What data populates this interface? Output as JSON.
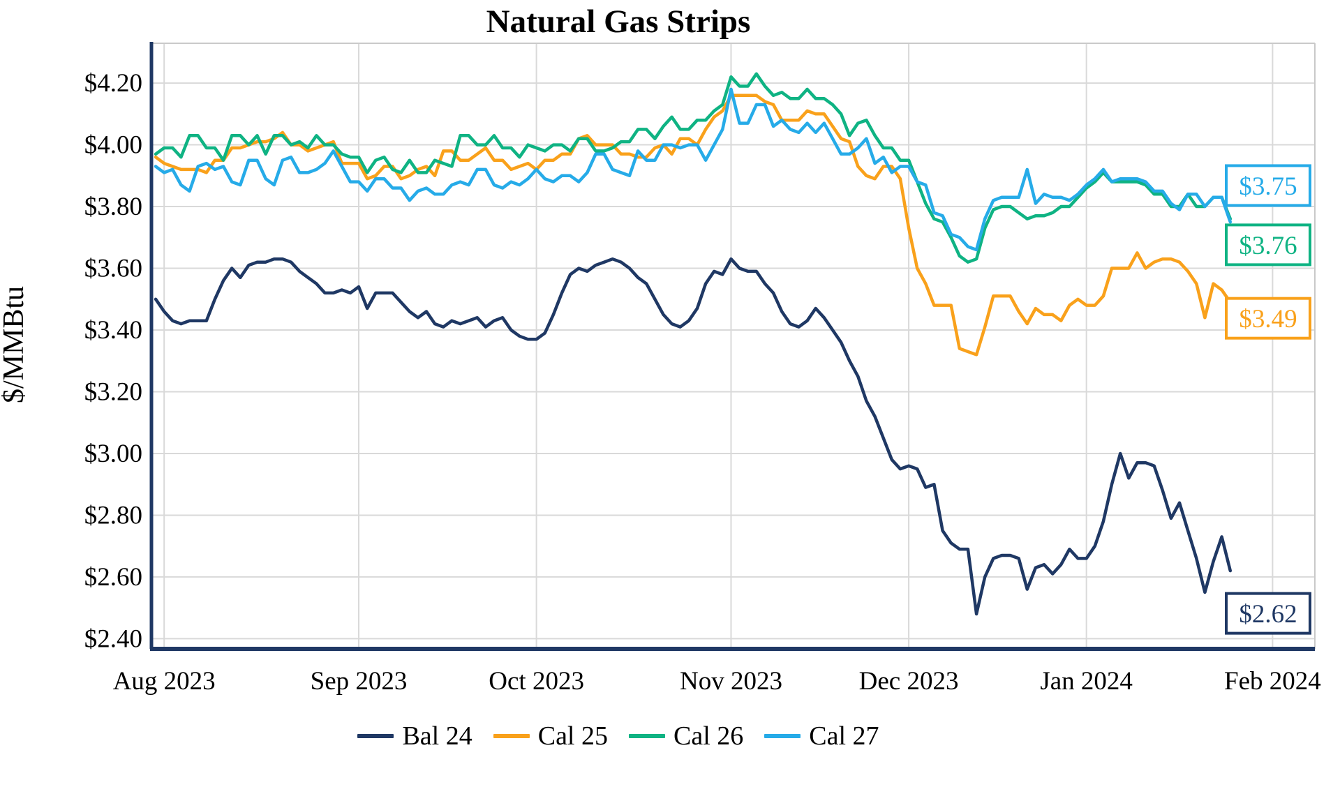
{
  "title": "Natural Gas Strips",
  "y_axis": {
    "label": "$/MMBtu",
    "tick_values": [
      4.2,
      4.0,
      3.8,
      3.6,
      3.4,
      3.2,
      3.0,
      2.8,
      2.6,
      2.4
    ],
    "tick_labels": [
      "$4.20",
      "$4.00",
      "$3.80",
      "$3.60",
      "$3.40",
      "$3.20",
      "$3.00",
      "$2.80",
      "$2.60",
      "$2.40"
    ],
    "min": 2.367,
    "max": 4.329
  },
  "x_axis": {
    "min": -0.5,
    "max": 137,
    "ticks": [
      {
        "label": "Aug 2023",
        "i": 1
      },
      {
        "label": "Sep 2023",
        "i": 24
      },
      {
        "label": "Oct 2023",
        "i": 45
      },
      {
        "label": "Nov 2023",
        "i": 68
      },
      {
        "label": "Dec 2023",
        "i": 89
      },
      {
        "label": "Jan 2024",
        "i": 110
      },
      {
        "label": "Feb 2024",
        "i": 132
      }
    ]
  },
  "end_labels": [
    {
      "text": "$3.75",
      "color": "#26ABE8",
      "v": 3.868
    },
    {
      "text": "$3.76",
      "color": "#0FB383",
      "v": 3.676
    },
    {
      "text": "$3.49",
      "color": "#F9A11B",
      "v": 3.438
    },
    {
      "text": "$2.62",
      "color": "#1F3864",
      "v": 2.482
    }
  ],
  "colors": {
    "axis": "#1F3864",
    "grid": "#D9D9D9",
    "plot_border": "#C9C9C9",
    "background": "#FFFFFF"
  },
  "chart_data": {
    "type": "line",
    "title": "Natural Gas Strips",
    "xlabel": "",
    "ylabel": "$/MMBtu",
    "ylim": [
      2.367,
      4.329
    ],
    "grid": true,
    "legend_position": "bottom",
    "x_unit": "trading days, Jul 31 2023 - Jan 25 2024",
    "month_start_indices": {
      "Aug 2023": 1,
      "Sep 2023": 24,
      "Oct 2023": 45,
      "Nov 2023": 68,
      "Dec 2023": 89,
      "Jan 2024": 110,
      "Feb 2024": 132
    },
    "series": [
      {
        "name": "Bal 24",
        "color": "#1F3864",
        "end_value": 2.62,
        "values": [
          3.5,
          3.46,
          3.43,
          3.42,
          3.43,
          3.43,
          3.43,
          3.5,
          3.56,
          3.6,
          3.57,
          3.61,
          3.62,
          3.62,
          3.63,
          3.63,
          3.62,
          3.59,
          3.57,
          3.55,
          3.52,
          3.52,
          3.53,
          3.52,
          3.54,
          3.47,
          3.52,
          3.52,
          3.52,
          3.49,
          3.46,
          3.44,
          3.46,
          3.42,
          3.41,
          3.43,
          3.42,
          3.43,
          3.44,
          3.41,
          3.43,
          3.44,
          3.4,
          3.38,
          3.37,
          3.37,
          3.39,
          3.45,
          3.52,
          3.58,
          3.6,
          3.59,
          3.61,
          3.62,
          3.63,
          3.62,
          3.6,
          3.57,
          3.55,
          3.5,
          3.45,
          3.42,
          3.41,
          3.43,
          3.47,
          3.55,
          3.59,
          3.58,
          3.63,
          3.6,
          3.59,
          3.59,
          3.55,
          3.52,
          3.46,
          3.42,
          3.41,
          3.43,
          3.47,
          3.44,
          3.4,
          3.36,
          3.3,
          3.25,
          3.17,
          3.12,
          3.05,
          2.98,
          2.95,
          2.96,
          2.95,
          2.89,
          2.9,
          2.75,
          2.71,
          2.69,
          2.69,
          2.48,
          2.6,
          2.66,
          2.67,
          2.67,
          2.66,
          2.56,
          2.63,
          2.64,
          2.61,
          2.64,
          2.69,
          2.66,
          2.66,
          2.7,
          2.78,
          2.9,
          3.0,
          2.92,
          2.97,
          2.97,
          2.96,
          2.88,
          2.79,
          2.84,
          2.75,
          2.66,
          2.55,
          2.65,
          2.73,
          2.62
        ]
      },
      {
        "name": "Cal 25",
        "color": "#F9A11B",
        "end_value": 3.49,
        "values": [
          3.96,
          3.94,
          3.93,
          3.92,
          3.92,
          3.92,
          3.91,
          3.95,
          3.95,
          3.99,
          3.99,
          4.0,
          4.01,
          4.01,
          4.02,
          4.04,
          4.0,
          4.0,
          3.98,
          3.99,
          4.0,
          4.01,
          3.94,
          3.94,
          3.94,
          3.89,
          3.9,
          3.93,
          3.93,
          3.89,
          3.9,
          3.92,
          3.93,
          3.9,
          3.98,
          3.98,
          3.95,
          3.95,
          3.97,
          3.99,
          3.95,
          3.95,
          3.92,
          3.93,
          3.94,
          3.92,
          3.95,
          3.95,
          3.97,
          3.97,
          4.02,
          4.03,
          4.0,
          4.0,
          4.0,
          3.97,
          3.97,
          3.96,
          3.96,
          3.99,
          4.0,
          3.97,
          4.02,
          4.02,
          4.0,
          4.05,
          4.09,
          4.11,
          4.16,
          4.16,
          4.16,
          4.16,
          4.14,
          4.13,
          4.08,
          4.08,
          4.08,
          4.11,
          4.1,
          4.1,
          4.06,
          4.02,
          4.01,
          3.93,
          3.9,
          3.89,
          3.93,
          3.93,
          3.89,
          3.73,
          3.6,
          3.55,
          3.48,
          3.48,
          3.48,
          3.34,
          3.33,
          3.32,
          3.41,
          3.51,
          3.51,
          3.51,
          3.46,
          3.42,
          3.47,
          3.45,
          3.45,
          3.43,
          3.48,
          3.5,
          3.48,
          3.48,
          3.51,
          3.6,
          3.6,
          3.6,
          3.65,
          3.6,
          3.62,
          3.63,
          3.63,
          3.62,
          3.59,
          3.55,
          3.44,
          3.55,
          3.53,
          3.49
        ]
      },
      {
        "name": "Cal 26",
        "color": "#0FB383",
        "end_value": 3.76,
        "values": [
          3.97,
          3.99,
          3.99,
          3.96,
          4.03,
          4.03,
          3.99,
          3.99,
          3.95,
          4.03,
          4.03,
          4.0,
          4.03,
          3.97,
          4.03,
          4.03,
          4.0,
          4.01,
          3.99,
          4.03,
          4.0,
          4.0,
          3.97,
          3.96,
          3.96,
          3.91,
          3.95,
          3.96,
          3.92,
          3.91,
          3.95,
          3.91,
          3.91,
          3.95,
          3.94,
          3.93,
          4.03,
          4.03,
          4.0,
          4.0,
          4.03,
          3.99,
          3.99,
          3.96,
          4.0,
          3.99,
          3.98,
          4.0,
          4.0,
          3.98,
          4.02,
          4.02,
          3.98,
          3.98,
          3.99,
          4.01,
          4.01,
          4.05,
          4.05,
          4.02,
          4.06,
          4.09,
          4.05,
          4.05,
          4.08,
          4.08,
          4.11,
          4.13,
          4.22,
          4.19,
          4.19,
          4.23,
          4.19,
          4.16,
          4.17,
          4.15,
          4.15,
          4.18,
          4.15,
          4.15,
          4.13,
          4.1,
          4.03,
          4.07,
          4.08,
          4.03,
          3.99,
          3.99,
          3.95,
          3.95,
          3.88,
          3.81,
          3.76,
          3.75,
          3.7,
          3.64,
          3.62,
          3.63,
          3.73,
          3.79,
          3.8,
          3.8,
          3.78,
          3.76,
          3.77,
          3.77,
          3.78,
          3.8,
          3.8,
          3.83,
          3.86,
          3.88,
          3.91,
          3.88,
          3.88,
          3.88,
          3.88,
          3.87,
          3.84,
          3.84,
          3.8,
          3.8,
          3.84,
          3.8,
          3.8,
          3.83,
          3.83,
          3.76
        ]
      },
      {
        "name": "Cal 27",
        "color": "#26ABE8",
        "end_value": 3.75,
        "values": [
          3.93,
          3.91,
          3.92,
          3.87,
          3.85,
          3.93,
          3.94,
          3.92,
          3.93,
          3.88,
          3.87,
          3.95,
          3.95,
          3.89,
          3.87,
          3.95,
          3.96,
          3.91,
          3.91,
          3.92,
          3.94,
          3.98,
          3.93,
          3.88,
          3.88,
          3.85,
          3.89,
          3.89,
          3.86,
          3.86,
          3.82,
          3.85,
          3.86,
          3.84,
          3.84,
          3.87,
          3.88,
          3.87,
          3.92,
          3.92,
          3.87,
          3.86,
          3.88,
          3.87,
          3.89,
          3.92,
          3.89,
          3.88,
          3.9,
          3.9,
          3.88,
          3.91,
          3.97,
          3.97,
          3.92,
          3.91,
          3.9,
          3.98,
          3.95,
          3.95,
          4.0,
          4.0,
          3.99,
          4.0,
          4.0,
          3.95,
          4.0,
          4.05,
          4.18,
          4.07,
          4.07,
          4.13,
          4.13,
          4.06,
          4.08,
          4.05,
          4.04,
          4.07,
          4.04,
          4.07,
          4.02,
          3.97,
          3.97,
          3.99,
          4.02,
          3.94,
          3.96,
          3.91,
          3.93,
          3.93,
          3.88,
          3.87,
          3.78,
          3.77,
          3.71,
          3.7,
          3.67,
          3.66,
          3.76,
          3.82,
          3.83,
          3.83,
          3.83,
          3.92,
          3.81,
          3.84,
          3.83,
          3.83,
          3.82,
          3.84,
          3.87,
          3.89,
          3.92,
          3.88,
          3.89,
          3.89,
          3.89,
          3.88,
          3.85,
          3.85,
          3.81,
          3.79,
          3.84,
          3.84,
          3.8,
          3.83,
          3.83,
          3.75
        ]
      }
    ]
  }
}
